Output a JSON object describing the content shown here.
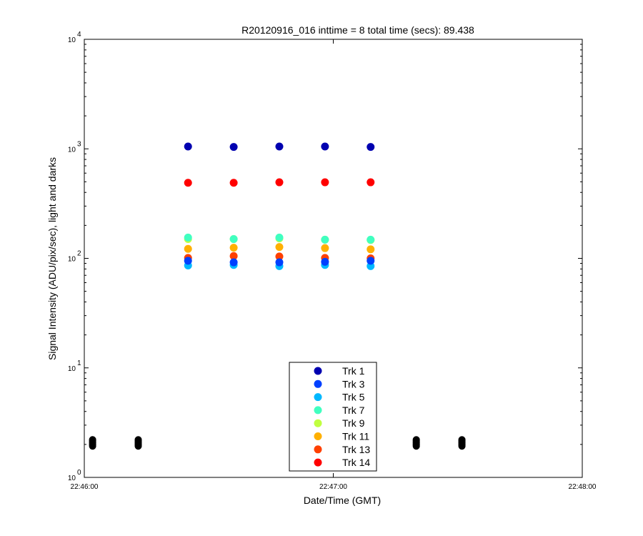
{
  "chart_data": {
    "type": "scatter",
    "title": "R20120916_016 inttime = 8 total time (secs): 89.438",
    "xlabel": "Date/Time (GMT)",
    "ylabel": "Signal Intensity (ADU/pix/sec), light and darks",
    "x_scale": "time",
    "y_scale": "log",
    "xlim": [
      "22:46:00",
      "22:48:00"
    ],
    "ylim": [
      1,
      10000
    ],
    "x_ticks": [
      "22:46:00",
      "22:47:00",
      "22:48:00"
    ],
    "y_ticks": [
      {
        "base": "10",
        "exp": "0"
      },
      {
        "base": "10",
        "exp": "1"
      },
      {
        "base": "10",
        "exp": "2"
      },
      {
        "base": "10",
        "exp": "3"
      },
      {
        "base": "10",
        "exp": "4"
      }
    ],
    "grid": false,
    "legend_position": "bottom-center",
    "series": [
      {
        "name": "Trk 1",
        "color": "#0000b0",
        "x": [
          "22:46:25",
          "22:46:36",
          "22:46:47",
          "22:46:58",
          "22:47:09"
        ],
        "y": [
          1050,
          1040,
          1050,
          1050,
          1040
        ]
      },
      {
        "name": "Trk 3",
        "color": "#0040ff",
        "x": [
          "22:46:25",
          "22:46:36",
          "22:46:47",
          "22:46:58",
          "22:47:09"
        ],
        "y": [
          95,
          92,
          92,
          93,
          95
        ]
      },
      {
        "name": "Trk 5",
        "color": "#00b8ff",
        "x": [
          "22:46:25",
          "22:46:36",
          "22:46:47",
          "22:46:58",
          "22:47:09"
        ],
        "y": [
          86,
          87,
          85,
          87,
          85
        ]
      },
      {
        "name": "Trk 7",
        "color": "#40ffc0",
        "x": [
          "22:46:25",
          "22:46:36",
          "22:46:47",
          "22:46:58",
          "22:47:09"
        ],
        "y": [
          155,
          150,
          155,
          148,
          148
        ]
      },
      {
        "name": "Trk 9",
        "color": "#c0ff40",
        "x": [
          "22:46:25",
          "22:46:36",
          "22:46:47",
          "22:46:58",
          "22:47:09"
        ],
        "y": [
          150,
          150,
          152,
          148,
          147
        ]
      },
      {
        "name": "Trk 11",
        "color": "#ffb000",
        "x": [
          "22:46:25",
          "22:46:36",
          "22:46:47",
          "22:46:58",
          "22:47:09"
        ],
        "y": [
          122,
          125,
          127,
          124,
          121
        ]
      },
      {
        "name": "Trk 13",
        "color": "#ff4000",
        "x": [
          "22:46:25",
          "22:46:36",
          "22:46:47",
          "22:46:58",
          "22:47:09"
        ],
        "y": [
          101,
          105,
          104,
          101,
          100
        ]
      },
      {
        "name": "Trk 14",
        "color": "#ff0000",
        "x": [
          "22:46:25",
          "22:46:36",
          "22:46:47",
          "22:46:58",
          "22:47:09"
        ],
        "y": [
          490,
          490,
          495,
          495,
          495
        ]
      }
    ],
    "dark_points": {
      "color": "#000000",
      "x": [
        "22:46:02",
        "22:46:13",
        "22:47:20",
        "22:47:31"
      ],
      "y": [
        2.05,
        2.05,
        2.05,
        2.05
      ]
    }
  }
}
